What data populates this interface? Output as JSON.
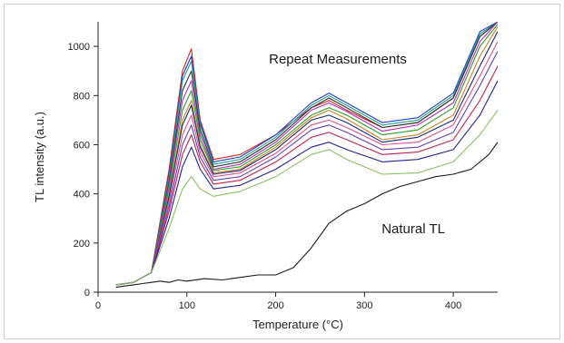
{
  "chart_data": {
    "type": "line",
    "title": "",
    "xlabel": "Temperature (°C)",
    "ylabel": "TL intensity (a.u.)",
    "xlim": [
      0,
      450
    ],
    "ylim": [
      0,
      1100
    ],
    "x_ticks": [
      0,
      100,
      200,
      300,
      400
    ],
    "y_ticks": [
      0,
      200,
      400,
      600,
      800,
      1000
    ],
    "grid": false,
    "legend": "none",
    "annotations": [
      {
        "text": "Repeat Measurements",
        "x": 270,
        "y": 930
      },
      {
        "text": "Natural TL",
        "x": 355,
        "y": 240
      }
    ],
    "series": [
      {
        "color": "#e02020",
        "values": [
          [
            20,
            30
          ],
          [
            40,
            40
          ],
          [
            60,
            80
          ],
          [
            80,
            500
          ],
          [
            95,
            900
          ],
          [
            105,
            990
          ],
          [
            115,
            700
          ],
          [
            130,
            540
          ],
          [
            160,
            560
          ],
          [
            200,
            640
          ],
          [
            240,
            750
          ],
          [
            260,
            780
          ],
          [
            280,
            740
          ],
          [
            320,
            670
          ],
          [
            360,
            690
          ],
          [
            400,
            790
          ],
          [
            430,
            1040
          ],
          [
            450,
            1100
          ]
        ]
      },
      {
        "color": "#1f3fd0",
        "values": [
          [
            20,
            30
          ],
          [
            40,
            40
          ],
          [
            60,
            80
          ],
          [
            80,
            480
          ],
          [
            95,
            880
          ],
          [
            105,
            960
          ],
          [
            115,
            690
          ],
          [
            130,
            530
          ],
          [
            160,
            550
          ],
          [
            200,
            640
          ],
          [
            240,
            770
          ],
          [
            260,
            810
          ],
          [
            280,
            770
          ],
          [
            320,
            690
          ],
          [
            360,
            710
          ],
          [
            400,
            810
          ],
          [
            430,
            1060
          ],
          [
            450,
            1100
          ]
        ]
      },
      {
        "color": "#20a090",
        "values": [
          [
            20,
            30
          ],
          [
            40,
            40
          ],
          [
            60,
            80
          ],
          [
            80,
            470
          ],
          [
            95,
            860
          ],
          [
            105,
            940
          ],
          [
            115,
            680
          ],
          [
            130,
            520
          ],
          [
            160,
            540
          ],
          [
            200,
            630
          ],
          [
            240,
            760
          ],
          [
            260,
            800
          ],
          [
            280,
            760
          ],
          [
            320,
            680
          ],
          [
            360,
            700
          ],
          [
            400,
            800
          ],
          [
            430,
            1050
          ],
          [
            450,
            1100
          ]
        ]
      },
      {
        "color": "#333333",
        "values": [
          [
            20,
            30
          ],
          [
            40,
            40
          ],
          [
            60,
            80
          ],
          [
            80,
            450
          ],
          [
            95,
            820
          ],
          [
            105,
            900
          ],
          [
            115,
            660
          ],
          [
            130,
            510
          ],
          [
            160,
            530
          ],
          [
            200,
            620
          ],
          [
            240,
            750
          ],
          [
            260,
            790
          ],
          [
            280,
            750
          ],
          [
            320,
            670
          ],
          [
            360,
            690
          ],
          [
            400,
            790
          ],
          [
            430,
            1040
          ],
          [
            450,
            1100
          ]
        ]
      },
      {
        "color": "#b030c0",
        "values": [
          [
            20,
            30
          ],
          [
            40,
            40
          ],
          [
            60,
            80
          ],
          [
            80,
            440
          ],
          [
            95,
            780
          ],
          [
            105,
            860
          ],
          [
            115,
            640
          ],
          [
            130,
            500
          ],
          [
            160,
            520
          ],
          [
            200,
            610
          ],
          [
            240,
            740
          ],
          [
            260,
            770
          ],
          [
            280,
            735
          ],
          [
            320,
            655
          ],
          [
            360,
            680
          ],
          [
            400,
            770
          ],
          [
            430,
            1020
          ],
          [
            450,
            1100
          ]
        ]
      },
      {
        "color": "#2aa02a",
        "values": [
          [
            20,
            30
          ],
          [
            40,
            40
          ],
          [
            60,
            80
          ],
          [
            80,
            420
          ],
          [
            95,
            740
          ],
          [
            105,
            820
          ],
          [
            115,
            620
          ],
          [
            130,
            495
          ],
          [
            160,
            510
          ],
          [
            200,
            600
          ],
          [
            240,
            720
          ],
          [
            260,
            750
          ],
          [
            280,
            720
          ],
          [
            320,
            640
          ],
          [
            360,
            660
          ],
          [
            400,
            750
          ],
          [
            430,
            1000
          ],
          [
            450,
            1090
          ]
        ]
      },
      {
        "color": "#d08020",
        "values": [
          [
            20,
            30
          ],
          [
            40,
            40
          ],
          [
            60,
            80
          ],
          [
            80,
            400
          ],
          [
            95,
            700
          ],
          [
            105,
            780
          ],
          [
            115,
            600
          ],
          [
            130,
            485
          ],
          [
            160,
            500
          ],
          [
            200,
            590
          ],
          [
            240,
            710
          ],
          [
            260,
            740
          ],
          [
            280,
            705
          ],
          [
            320,
            620
          ],
          [
            360,
            640
          ],
          [
            400,
            720
          ],
          [
            430,
            960
          ],
          [
            450,
            1080
          ]
        ]
      },
      {
        "color": "#1a2a7a",
        "values": [
          [
            20,
            30
          ],
          [
            40,
            40
          ],
          [
            60,
            80
          ],
          [
            80,
            390
          ],
          [
            95,
            680
          ],
          [
            105,
            760
          ],
          [
            115,
            590
          ],
          [
            130,
            480
          ],
          [
            160,
            495
          ],
          [
            200,
            580
          ],
          [
            240,
            700
          ],
          [
            260,
            720
          ],
          [
            280,
            690
          ],
          [
            320,
            610
          ],
          [
            360,
            630
          ],
          [
            400,
            700
          ],
          [
            430,
            920
          ],
          [
            450,
            1060
          ]
        ]
      },
      {
        "color": "#e05090",
        "values": [
          [
            20,
            30
          ],
          [
            40,
            40
          ],
          [
            60,
            80
          ],
          [
            80,
            370
          ],
          [
            95,
            640
          ],
          [
            105,
            720
          ],
          [
            115,
            570
          ],
          [
            130,
            470
          ],
          [
            160,
            485
          ],
          [
            200,
            565
          ],
          [
            240,
            680
          ],
          [
            260,
            700
          ],
          [
            280,
            670
          ],
          [
            320,
            600
          ],
          [
            360,
            610
          ],
          [
            400,
            680
          ],
          [
            430,
            880
          ],
          [
            450,
            1020
          ]
        ]
      },
      {
        "color": "#6040c0",
        "values": [
          [
            20,
            30
          ],
          [
            40,
            40
          ],
          [
            60,
            80
          ],
          [
            80,
            350
          ],
          [
            95,
            600
          ],
          [
            105,
            680
          ],
          [
            115,
            550
          ],
          [
            130,
            455
          ],
          [
            160,
            470
          ],
          [
            200,
            550
          ],
          [
            240,
            660
          ],
          [
            260,
            680
          ],
          [
            280,
            650
          ],
          [
            320,
            580
          ],
          [
            360,
            590
          ],
          [
            400,
            650
          ],
          [
            430,
            840
          ],
          [
            450,
            980
          ]
        ]
      },
      {
        "color": "#c02050",
        "values": [
          [
            20,
            30
          ],
          [
            40,
            40
          ],
          [
            60,
            80
          ],
          [
            80,
            330
          ],
          [
            95,
            560
          ],
          [
            105,
            640
          ],
          [
            115,
            530
          ],
          [
            130,
            440
          ],
          [
            160,
            455
          ],
          [
            200,
            530
          ],
          [
            240,
            630
          ],
          [
            260,
            650
          ],
          [
            280,
            620
          ],
          [
            320,
            560
          ],
          [
            360,
            570
          ],
          [
            400,
            620
          ],
          [
            430,
            780
          ],
          [
            450,
            920
          ]
        ]
      },
      {
        "color": "#20209a",
        "values": [
          [
            20,
            30
          ],
          [
            40,
            40
          ],
          [
            60,
            80
          ],
          [
            80,
            300
          ],
          [
            95,
            510
          ],
          [
            105,
            590
          ],
          [
            115,
            500
          ],
          [
            130,
            420
          ],
          [
            160,
            435
          ],
          [
            200,
            500
          ],
          [
            240,
            590
          ],
          [
            260,
            610
          ],
          [
            280,
            580
          ],
          [
            320,
            530
          ],
          [
            360,
            540
          ],
          [
            400,
            580
          ],
          [
            430,
            720
          ],
          [
            450,
            860
          ]
        ]
      },
      {
        "color": "#88c060",
        "values": [
          [
            20,
            30
          ],
          [
            40,
            40
          ],
          [
            60,
            80
          ],
          [
            80,
            260
          ],
          [
            95,
            420
          ],
          [
            105,
            470
          ],
          [
            115,
            420
          ],
          [
            130,
            390
          ],
          [
            160,
            410
          ],
          [
            200,
            470
          ],
          [
            240,
            560
          ],
          [
            260,
            580
          ],
          [
            280,
            540
          ],
          [
            320,
            480
          ],
          [
            360,
            485
          ],
          [
            400,
            530
          ],
          [
            430,
            640
          ],
          [
            450,
            740
          ]
        ]
      },
      {
        "color": "#1a1a1a",
        "values": [
          [
            20,
            20
          ],
          [
            30,
            25
          ],
          [
            40,
            30
          ],
          [
            50,
            35
          ],
          [
            60,
            40
          ],
          [
            70,
            45
          ],
          [
            80,
            40
          ],
          [
            90,
            50
          ],
          [
            100,
            45
          ],
          [
            120,
            55
          ],
          [
            140,
            50
          ],
          [
            160,
            60
          ],
          [
            180,
            70
          ],
          [
            200,
            70
          ],
          [
            220,
            100
          ],
          [
            240,
            180
          ],
          [
            260,
            280
          ],
          [
            280,
            330
          ],
          [
            300,
            360
          ],
          [
            320,
            400
          ],
          [
            340,
            430
          ],
          [
            360,
            450
          ],
          [
            380,
            470
          ],
          [
            400,
            480
          ],
          [
            420,
            500
          ],
          [
            440,
            560
          ],
          [
            450,
            610
          ]
        ]
      }
    ]
  }
}
